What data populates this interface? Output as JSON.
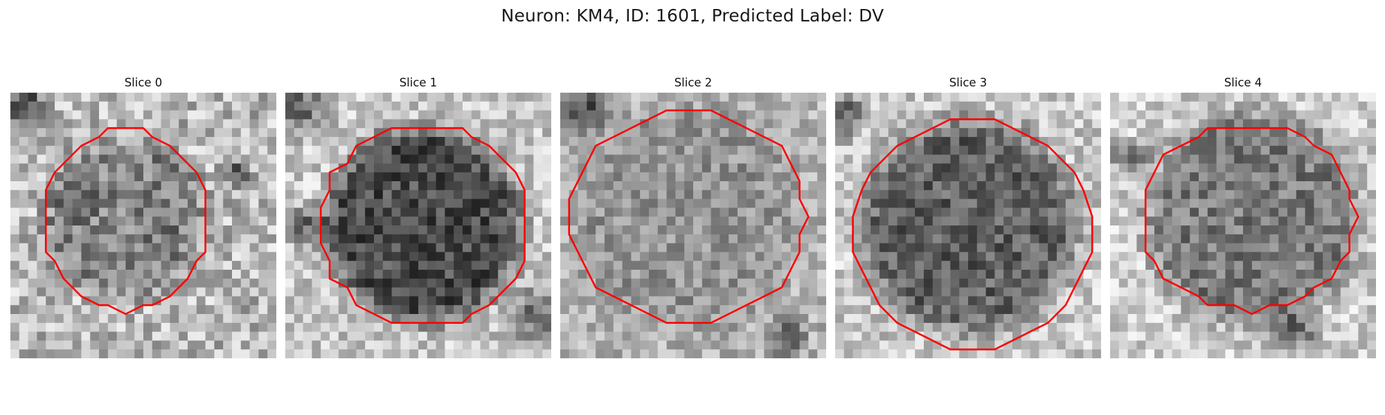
{
  "figure": {
    "title": "Neuron: KM4, ID: 1601, Predicted Label: DV"
  },
  "contour_color": "#ff0000",
  "slices": [
    {
      "label": "Slice 0"
    },
    {
      "label": "Slice 1"
    },
    {
      "label": "Slice 2"
    },
    {
      "label": "Slice 3"
    },
    {
      "label": "Slice 4"
    }
  ]
}
